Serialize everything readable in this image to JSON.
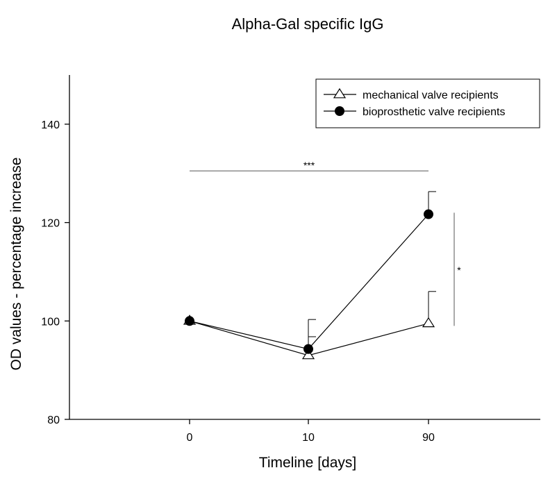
{
  "chart_data": {
    "type": "line",
    "title": "Alpha-Gal specific IgG",
    "xlabel": "Timeline [days]",
    "ylabel": "OD values - percentage increase",
    "categories": [
      "0",
      "10",
      "90"
    ],
    "ylim": [
      80,
      150
    ],
    "yticks": [
      80,
      100,
      120,
      140
    ],
    "grid": false,
    "legend_position": "top-right",
    "series": [
      {
        "name": "mechanical valve recipients",
        "marker": "open-triangle",
        "values": [
          100,
          93,
          99.5
        ],
        "error_upper": [
          0,
          3.8,
          6.5
        ]
      },
      {
        "name": "bioprosthetic valve recipients",
        "marker": "filled-circle",
        "values": [
          100,
          94.3,
          121.7
        ],
        "error_upper": [
          0,
          6,
          4.6
        ]
      }
    ],
    "annotations": [
      {
        "text": "***",
        "type": "horizontal-bracket",
        "from_category": "0",
        "to_category": "90",
        "y": 130.5
      },
      {
        "text": "*",
        "type": "vertical-bracket",
        "after_category": "90",
        "y_from": 99,
        "y_to": 122
      }
    ]
  }
}
